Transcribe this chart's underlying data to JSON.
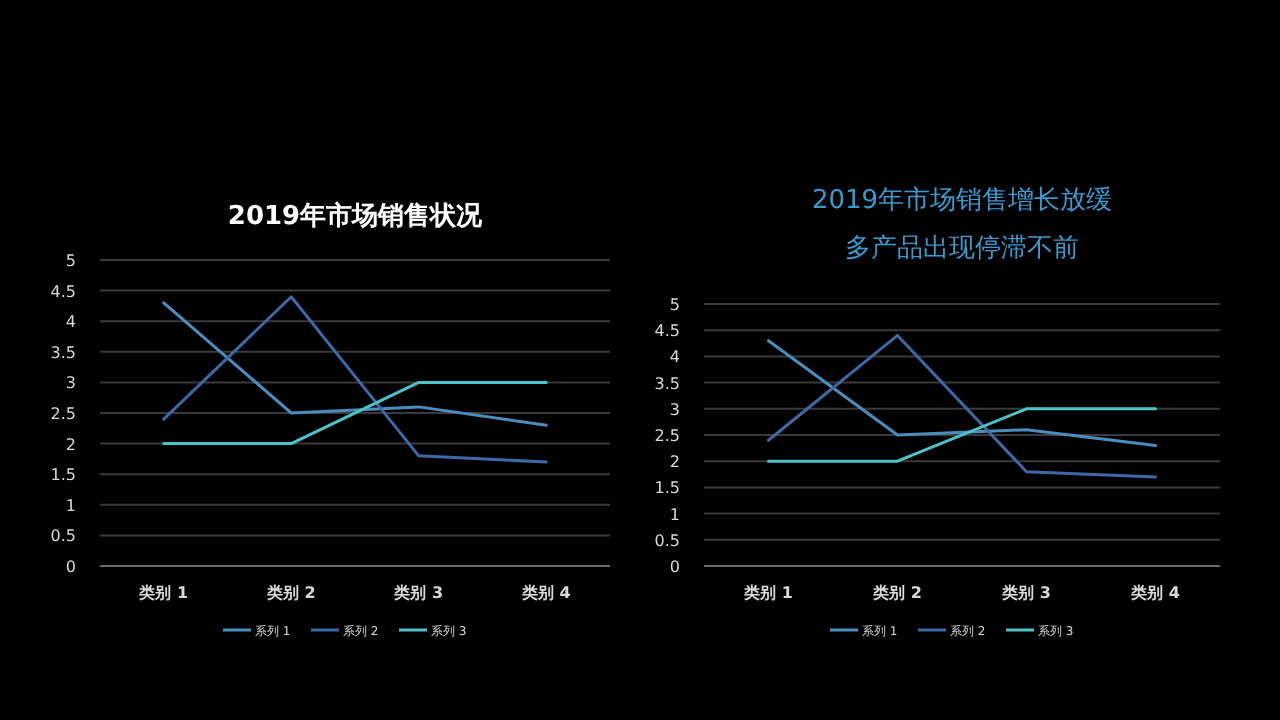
{
  "chart_data": [
    {
      "type": "line",
      "title": "2019年市场销售状况",
      "categories": [
        "类别 1",
        "类别 2",
        "类别 3",
        "类别 4"
      ],
      "series": [
        {
          "name": "系列 1",
          "color": "#4a8dbf",
          "values": [
            4.3,
            2.5,
            2.6,
            2.3
          ]
        },
        {
          "name": "系列 2",
          "color": "#3e68a6",
          "values": [
            2.4,
            4.4,
            1.8,
            1.7
          ]
        },
        {
          "name": "系列 3",
          "color": "#4cc3c8",
          "values": [
            2,
            2,
            3,
            3
          ]
        }
      ],
      "ylim": [
        0,
        5
      ],
      "yticks": [
        0,
        0.5,
        1,
        1.5,
        2,
        2.5,
        3,
        3.5,
        4,
        4.5,
        5
      ],
      "grid": "y",
      "legend": "bottom",
      "marker": "none",
      "line_style": "solid"
    },
    {
      "type": "line",
      "title": "2019年市场销售增长放缓",
      "subtitle": "多产品出现停滞不前",
      "categories": [
        "类别 1",
        "类别 2",
        "类别 3",
        "类别 4"
      ],
      "series": [
        {
          "name": "系列 1",
          "color": "#4a8dbf",
          "values": [
            4.3,
            2.5,
            2.6,
            2.3
          ]
        },
        {
          "name": "系列 2",
          "color": "#3e68a6",
          "values": [
            2.4,
            4.4,
            1.8,
            1.7
          ]
        },
        {
          "name": "系列 3",
          "color": "#4cc3c8",
          "values": [
            2,
            2,
            3,
            3
          ]
        }
      ],
      "ylim": [
        0,
        5
      ],
      "yticks": [
        0,
        0.5,
        1,
        1.5,
        2,
        2.5,
        3,
        3.5,
        4,
        4.5,
        5
      ],
      "grid": "y",
      "legend": "bottom",
      "marker": "none",
      "line_style": "solid"
    }
  ]
}
